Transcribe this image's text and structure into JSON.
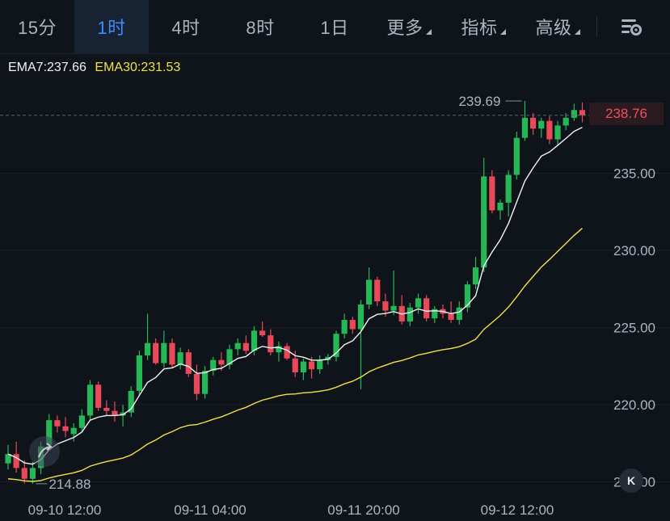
{
  "tabs": [
    {
      "label": "15分",
      "active": false
    },
    {
      "label": "1时",
      "active": true
    },
    {
      "label": "4时",
      "active": false
    },
    {
      "label": "8时",
      "active": false
    },
    {
      "label": "1日",
      "active": false
    },
    {
      "label": "更多",
      "active": false,
      "dropdown": true
    },
    {
      "label": "指标",
      "active": false,
      "dropdown": true
    },
    {
      "label": "高级",
      "active": false,
      "dropdown": true
    }
  ],
  "toolbar": {
    "settings_icon": "chart-settings-icon",
    "expand_button": "K"
  },
  "ema": {
    "ema7_label": "EMA7:237.66",
    "ema7_color": "#f2f2f2",
    "ema30_label": "EMA30:231.53",
    "ema30_color": "#f0e246"
  },
  "colors": {
    "up": "#26b856",
    "down": "#e84a5a",
    "accent": "#3e8cff",
    "background": "#0f131a"
  },
  "chart_data": {
    "type": "candlestick",
    "interval": "1h",
    "x_ticks": [
      "09-10 12:00",
      "09-11 04:00",
      "09-11 20:00",
      "09-12 12:00"
    ],
    "y_ticks": [
      "235.00",
      "230.00",
      "225.00",
      "220.00",
      "215.00"
    ],
    "ylim": [
      214.5,
      240.5
    ],
    "high_label": "239.69",
    "low_label": "214.88",
    "last_price": "238.76",
    "ohlc": [
      [
        216.2,
        217.4,
        215.8,
        216.8
      ],
      [
        216.8,
        217.6,
        215.6,
        215.9
      ],
      [
        215.9,
        216.4,
        214.9,
        215.2
      ],
      [
        215.2,
        216.3,
        214.88,
        215.9
      ],
      [
        215.9,
        217.6,
        215.5,
        217.3
      ],
      [
        217.4,
        219.4,
        217.1,
        219.0
      ],
      [
        219.0,
        219.3,
        218.2,
        218.6
      ],
      [
        218.6,
        219.2,
        217.9,
        218.3
      ],
      [
        218.1,
        218.8,
        217.6,
        218.5
      ],
      [
        218.5,
        219.7,
        218.3,
        219.3
      ],
      [
        219.3,
        221.6,
        219.0,
        221.3
      ],
      [
        221.3,
        221.5,
        219.6,
        219.8
      ],
      [
        219.8,
        220.3,
        219.3,
        219.6
      ],
      [
        219.6,
        220.2,
        218.9,
        219.3
      ],
      [
        219.3,
        220.0,
        218.6,
        219.5
      ],
      [
        219.5,
        221.2,
        219.2,
        220.9
      ],
      [
        220.9,
        223.5,
        220.6,
        223.2
      ],
      [
        223.2,
        225.9,
        222.9,
        224.0
      ],
      [
        224.0,
        224.3,
        222.6,
        222.7
      ],
      [
        222.7,
        224.8,
        222.4,
        224.0
      ],
      [
        224.0,
        224.3,
        222.4,
        222.6
      ],
      [
        222.6,
        223.7,
        222.3,
        223.4
      ],
      [
        223.4,
        223.6,
        221.8,
        222.0
      ],
      [
        222.0,
        222.6,
        220.3,
        220.7
      ],
      [
        220.7,
        222.5,
        220.4,
        222.2
      ],
      [
        222.2,
        223.1,
        221.9,
        222.9
      ],
      [
        222.9,
        223.4,
        222.2,
        222.6
      ],
      [
        222.6,
        223.9,
        222.3,
        223.6
      ],
      [
        223.6,
        224.3,
        223.2,
        224.0
      ],
      [
        224.0,
        224.5,
        223.3,
        223.5
      ],
      [
        223.5,
        225.1,
        223.2,
        224.8
      ],
      [
        224.8,
        225.4,
        224.4,
        224.5
      ],
      [
        224.5,
        224.9,
        223.2,
        223.4
      ],
      [
        223.4,
        224.1,
        222.8,
        223.8
      ],
      [
        223.8,
        224.0,
        222.9,
        223.0
      ],
      [
        223.0,
        223.5,
        221.8,
        222.1
      ],
      [
        222.1,
        223.0,
        221.6,
        222.8
      ],
      [
        222.8,
        223.1,
        221.7,
        222.3
      ],
      [
        222.3,
        223.2,
        222.0,
        222.9
      ],
      [
        222.9,
        223.3,
        222.6,
        223.1
      ],
      [
        223.1,
        224.8,
        222.8,
        224.6
      ],
      [
        224.6,
        225.9,
        224.3,
        225.5
      ],
      [
        225.5,
        225.7,
        224.6,
        224.9
      ],
      [
        224.9,
        226.8,
        221.0,
        226.5
      ],
      [
        226.5,
        228.9,
        226.2,
        228.1
      ],
      [
        228.1,
        228.3,
        226.4,
        226.7
      ],
      [
        226.7,
        227.2,
        225.7,
        226.1
      ],
      [
        226.1,
        228.7,
        225.8,
        226.4
      ],
      [
        226.4,
        227.1,
        225.2,
        225.4
      ],
      [
        225.4,
        226.6,
        225.1,
        226.3
      ],
      [
        226.3,
        227.2,
        225.9,
        226.9
      ],
      [
        226.9,
        227.1,
        225.4,
        225.6
      ],
      [
        225.6,
        226.4,
        225.3,
        226.2
      ],
      [
        226.2,
        226.5,
        225.6,
        225.9
      ],
      [
        225.9,
        226.7,
        225.3,
        225.5
      ],
      [
        225.5,
        226.7,
        225.2,
        226.3
      ],
      [
        226.3,
        228.0,
        226.0,
        227.8
      ],
      [
        227.8,
        229.6,
        227.5,
        228.9
      ],
      [
        228.9,
        236.0,
        228.6,
        234.8
      ],
      [
        234.8,
        235.2,
        232.4,
        232.6
      ],
      [
        232.6,
        233.3,
        232.0,
        233.1
      ],
      [
        233.1,
        235.2,
        232.2,
        234.9
      ],
      [
        234.9,
        237.7,
        234.6,
        237.3
      ],
      [
        237.3,
        239.69,
        237.1,
        238.6
      ],
      [
        238.6,
        238.9,
        237.5,
        237.9
      ],
      [
        237.9,
        238.6,
        237.3,
        238.4
      ],
      [
        238.4,
        238.7,
        236.9,
        237.2
      ],
      [
        237.2,
        238.4,
        236.8,
        238.1
      ],
      [
        238.1,
        238.9,
        237.8,
        238.6
      ],
      [
        238.6,
        239.5,
        238.4,
        239.1
      ],
      [
        239.1,
        239.6,
        238.3,
        238.76
      ]
    ]
  }
}
